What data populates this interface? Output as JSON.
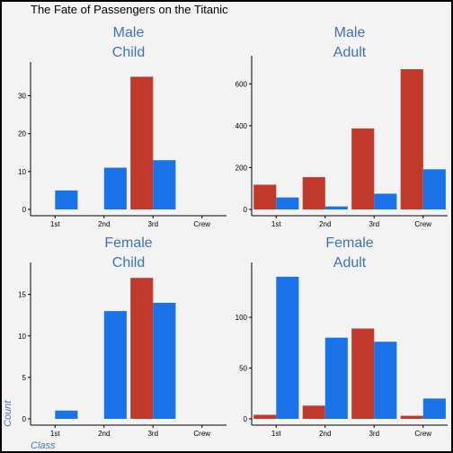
{
  "chart_data": {
    "type": "bar",
    "title": "The Fate of Passengers on the Titanic",
    "xlabel": "Class",
    "ylabel": "Count",
    "categories": [
      "1st",
      "2nd",
      "3rd",
      "Crew"
    ],
    "colors": {
      "No": "#c0392b",
      "Yes": "#1a73e8"
    },
    "grid": false,
    "panels": [
      {
        "sex": "Male",
        "age": "Child",
        "ylim": [
          0,
          37
        ],
        "yticks": [
          0,
          10,
          20,
          30
        ],
        "series": [
          {
            "key": "No",
            "values": [
              0,
              0,
              35,
              0
            ]
          },
          {
            "key": "Yes",
            "values": [
              5,
              11,
              13,
              0
            ]
          }
        ]
      },
      {
        "sex": "Male",
        "age": "Adult",
        "ylim": [
          0,
          700
        ],
        "yticks": [
          0,
          200,
          400,
          600
        ],
        "series": [
          {
            "key": "No",
            "values": [
              118,
              154,
              387,
              670
            ]
          },
          {
            "key": "Yes",
            "values": [
              57,
              14,
              75,
              192
            ]
          }
        ]
      },
      {
        "sex": "Female",
        "age": "Child",
        "ylim": [
          0,
          18
        ],
        "yticks": [
          0,
          5,
          10,
          15
        ],
        "series": [
          {
            "key": "No",
            "values": [
              0,
              0,
              17,
              0
            ]
          },
          {
            "key": "Yes",
            "values": [
              1,
              13,
              14,
              0
            ]
          }
        ]
      },
      {
        "sex": "Female",
        "age": "Adult",
        "ylim": [
          0,
          147
        ],
        "yticks": [
          0,
          50,
          100
        ],
        "series": [
          {
            "key": "No",
            "values": [
              4,
              13,
              89,
              3
            ]
          },
          {
            "key": "Yes",
            "values": [
              140,
              80,
              76,
              20
            ]
          }
        ]
      }
    ]
  }
}
